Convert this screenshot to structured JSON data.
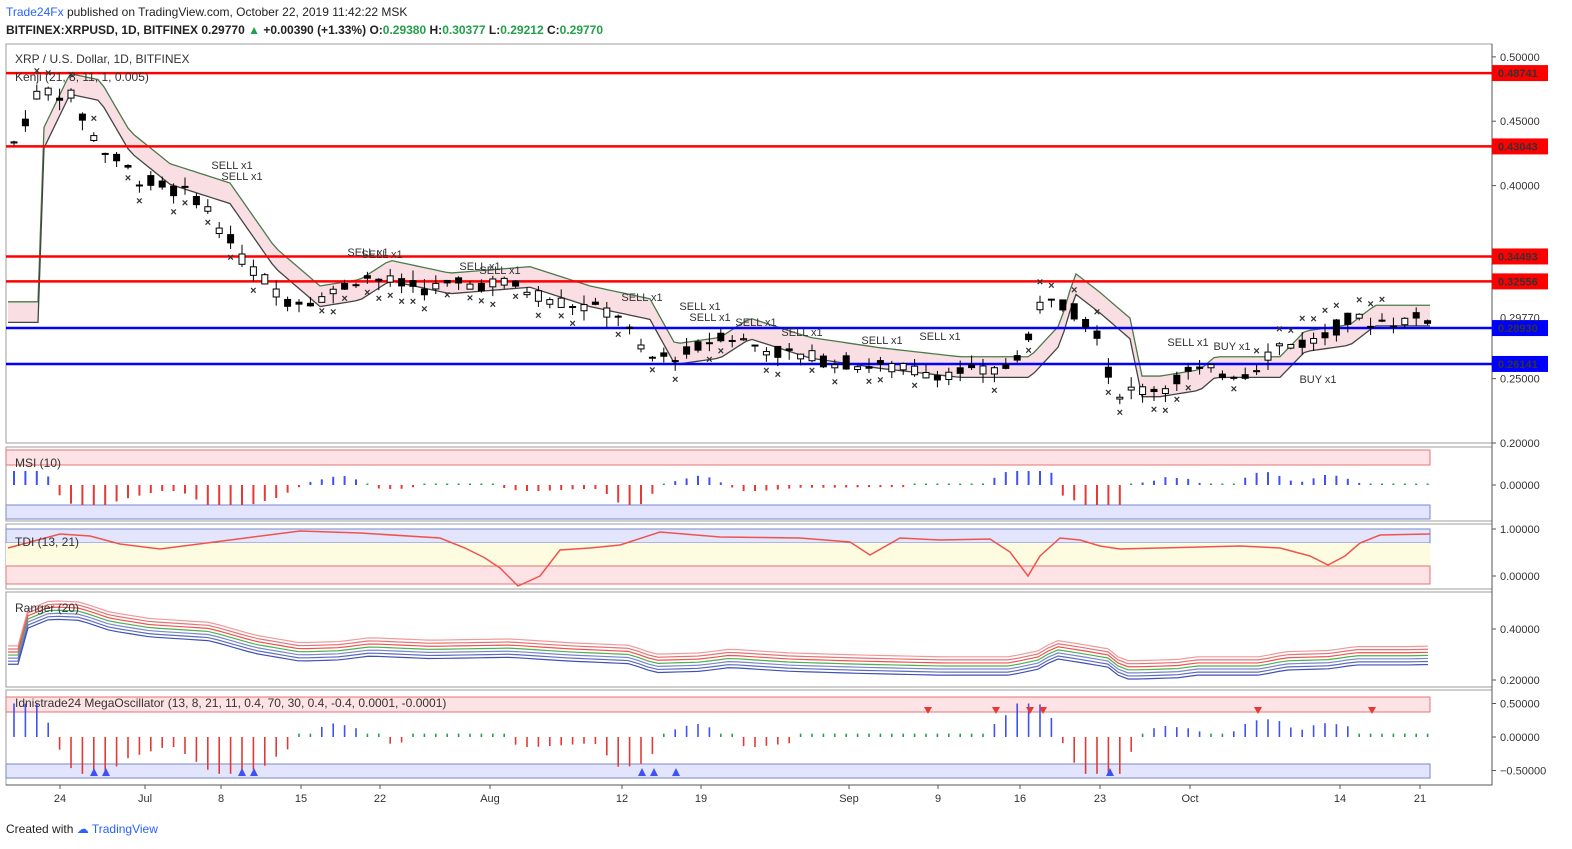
{
  "header": {
    "publisher": "Trade24Fx",
    "published_text": "published on TradingView.com, October 22, 2019 11:42:22 MSK",
    "symbol": "BITFINEX:XRPUSD, 1D, BITFINEX",
    "last": "0.29770",
    "change": "+0.00390 (+1.33%)",
    "o_label": "O:",
    "o_value": "0.29380",
    "h_label": "H:",
    "h_value": "0.30377",
    "l_label": "L:",
    "l_value": "0.29212",
    "c_label": "C:",
    "c_value": "0.29770"
  },
  "panes": {
    "main_title": "XRP / U.S. Dollar, 1D, BITFINEX",
    "main_indicator": "Kenji (21, 8, 11, 1, 0.005)",
    "msi": "MSI (10)",
    "tdi": "TDI (13, 21)",
    "ranger": "Ranger (20)",
    "mega": "Idnistrade24 MegaOscillator (13, 8, 21, 11, 0.4, 70, 30, 0.4, -0.4, 0.0001, -0.0001)"
  },
  "footer": {
    "created": "Created with",
    "brand": "TradingView"
  },
  "colors": {
    "sell": "#e53935",
    "buy": "#3f51f5",
    "up_text": "#22a04a",
    "resistance": "#ff0000",
    "support": "#0000ff"
  },
  "chart_data": [
    {
      "type": "candlestick",
      "title": "XRP / U.S. Dollar, 1D, BITFINEX",
      "ylim": [
        0.2,
        0.51
      ],
      "y_ticks": [
        "0.50000",
        "0.45000",
        "0.40000",
        "0.35000",
        "0.30000",
        "0.25000",
        "0.20000"
      ],
      "x_labels": [
        "24",
        "Jul",
        "8",
        "15",
        "22",
        "Aug",
        "12",
        "19",
        "Sep",
        "9",
        "16",
        "23",
        "Oct",
        "14",
        "21"
      ],
      "levels": [
        {
          "value": 0.48741,
          "label": "0.48741",
          "color": "#ff0000"
        },
        {
          "value": 0.43043,
          "label": "0.43043",
          "color": "#ff0000"
        },
        {
          "value": 0.34493,
          "label": "0.34493",
          "color": "#ff0000"
        },
        {
          "value": 0.32556,
          "label": "0.32556",
          "color": "#ff0000"
        },
        {
          "value": 0.2893,
          "label": "0.28930",
          "color": "#0000ff"
        },
        {
          "value": 0.26141,
          "label": "0.26141",
          "color": "#0000ff"
        }
      ],
      "last_price": {
        "value": 0.2977,
        "label": "0.29770"
      },
      "signals": [
        {
          "text": "SELL x1"
        },
        {
          "text": "SELL x1"
        },
        {
          "text": "SELL x1"
        },
        {
          "text": "SELL x1"
        },
        {
          "text": "SELL x1"
        },
        {
          "text": "SELL x1"
        },
        {
          "text": "SELL x1"
        },
        {
          "text": "SELL x1"
        },
        {
          "text": "SELL x1"
        },
        {
          "text": "SELL x1"
        },
        {
          "text": "SELL x1"
        },
        {
          "text": "SELL x1"
        },
        {
          "text": "SELL x1"
        },
        {
          "text": "SELL x1"
        },
        {
          "text": "BUY x1"
        },
        {
          "text": "BUY x1"
        }
      ]
    },
    {
      "type": "bar",
      "title": "MSI (10)",
      "y_ticks": [
        "0.00000"
      ]
    },
    {
      "type": "line",
      "title": "TDI (13, 21)",
      "y_ticks": [
        "1.00000",
        "0.00000"
      ]
    },
    {
      "type": "line",
      "title": "Ranger (20)",
      "y_ticks": [
        "0.40000",
        "0.20000"
      ]
    },
    {
      "type": "bar",
      "title": "Idnistrade24 MegaOscillator (13, 8, 21, 11, 0.4, 70, 30, 0.4, -0.4, 0.0001, -0.0001)",
      "y_ticks": [
        "0.50000",
        "0.00000",
        "−0.50000"
      ]
    }
  ]
}
